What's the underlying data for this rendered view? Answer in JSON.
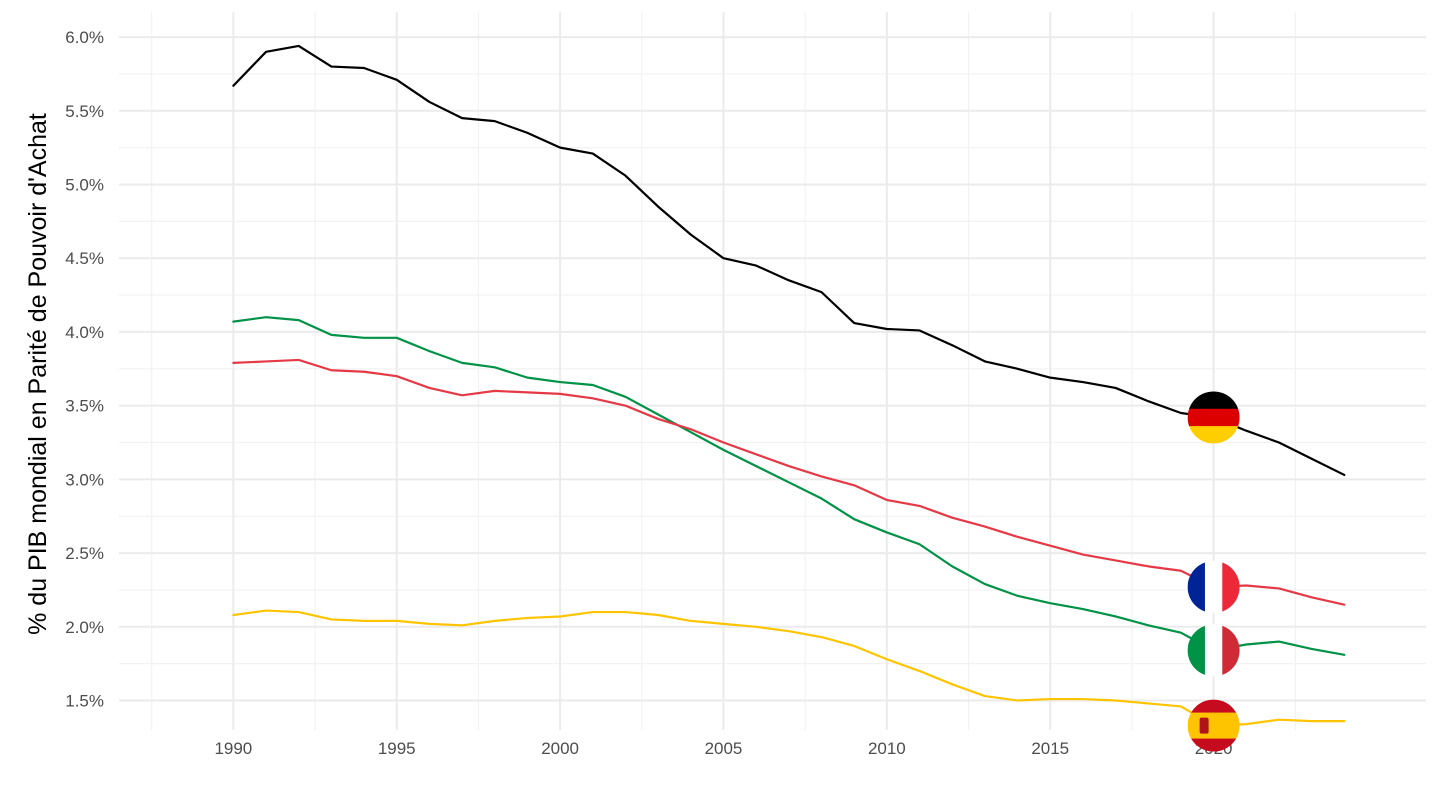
{
  "chart_data": {
    "type": "line",
    "title": "",
    "xlabel": "",
    "ylabel": "% du PIB mondial en Parité de Pouvoir d'Achat",
    "xlim": [
      1986.5,
      2026.5
    ],
    "ylim": [
      1.3,
      6.17
    ],
    "x_ticks": [
      1990,
      1995,
      2000,
      2005,
      2010,
      2015,
      2020
    ],
    "x_tick_labels": [
      "1990",
      "1995",
      "2000",
      "2005",
      "2010",
      "2015",
      "2020"
    ],
    "y_ticks": [
      1.5,
      2.0,
      2.5,
      3.0,
      3.5,
      4.0,
      4.5,
      5.0,
      5.5,
      6.0
    ],
    "y_tick_labels": [
      "1.5%",
      "2.0%",
      "2.5%",
      "3.0%",
      "3.5%",
      "4.0%",
      "4.5%",
      "5.0%",
      "5.5%",
      "6.0%"
    ],
    "x": [
      1990,
      1991,
      1992,
      1993,
      1994,
      1995,
      1996,
      1997,
      1998,
      1999,
      2000,
      2001,
      2002,
      2003,
      2004,
      2005,
      2006,
      2007,
      2008,
      2009,
      2010,
      2011,
      2012,
      2013,
      2014,
      2015,
      2016,
      2017,
      2018,
      2019,
      2020,
      2021,
      2022,
      2023,
      2024
    ],
    "series": [
      {
        "name": "Germany",
        "color": "#000000",
        "flag": "germany-flag",
        "values": [
          5.67,
          5.9,
          5.94,
          5.8,
          5.79,
          5.71,
          5.56,
          5.45,
          5.43,
          5.35,
          5.25,
          5.21,
          5.06,
          4.85,
          4.66,
          4.5,
          4.45,
          4.35,
          4.27,
          4.06,
          4.02,
          4.01,
          3.91,
          3.8,
          3.75,
          3.69,
          3.66,
          3.62,
          3.53,
          3.45,
          3.42,
          3.33,
          3.25,
          3.14,
          3.03
        ]
      },
      {
        "name": "France",
        "color": "#e63946",
        "flag": "france-flag",
        "values": [
          3.79,
          3.8,
          3.81,
          3.74,
          3.73,
          3.7,
          3.62,
          3.57,
          3.6,
          3.59,
          3.58,
          3.55,
          3.5,
          3.41,
          3.34,
          3.25,
          3.17,
          3.09,
          3.02,
          2.96,
          2.86,
          2.82,
          2.74,
          2.68,
          2.61,
          2.55,
          2.49,
          2.45,
          2.41,
          2.38,
          2.27,
          2.28,
          2.26,
          2.2,
          2.15
        ]
      },
      {
        "name": "Italy",
        "color": "#009246",
        "flag": "italy-flag",
        "values": [
          4.07,
          4.1,
          4.08,
          3.98,
          3.96,
          3.96,
          3.87,
          3.79,
          3.76,
          3.69,
          3.66,
          3.64,
          3.56,
          3.44,
          3.32,
          3.2,
          3.09,
          2.98,
          2.87,
          2.73,
          2.64,
          2.56,
          2.41,
          2.29,
          2.21,
          2.16,
          2.12,
          2.07,
          2.01,
          1.96,
          1.84,
          1.88,
          1.9,
          1.85,
          1.81
        ]
      },
      {
        "name": "Spain",
        "color": "#ffc400",
        "flag": "spain-flag",
        "values": [
          2.08,
          2.11,
          2.1,
          2.05,
          2.04,
          2.04,
          2.02,
          2.01,
          2.04,
          2.06,
          2.07,
          2.1,
          2.1,
          2.08,
          2.04,
          2.02,
          2.0,
          1.97,
          1.93,
          1.87,
          1.78,
          1.7,
          1.61,
          1.53,
          1.5,
          1.51,
          1.51,
          1.5,
          1.48,
          1.46,
          1.33,
          1.34,
          1.37,
          1.36,
          1.36
        ]
      }
    ],
    "flag_markers": [
      {
        "series": "Germany",
        "x": 2020,
        "y": 3.42
      },
      {
        "series": "France",
        "x": 2020,
        "y": 2.27
      },
      {
        "series": "Italy",
        "x": 2020,
        "y": 1.84
      },
      {
        "series": "Spain",
        "x": 2020,
        "y": 1.33
      }
    ],
    "grid": true,
    "legend": "none"
  }
}
